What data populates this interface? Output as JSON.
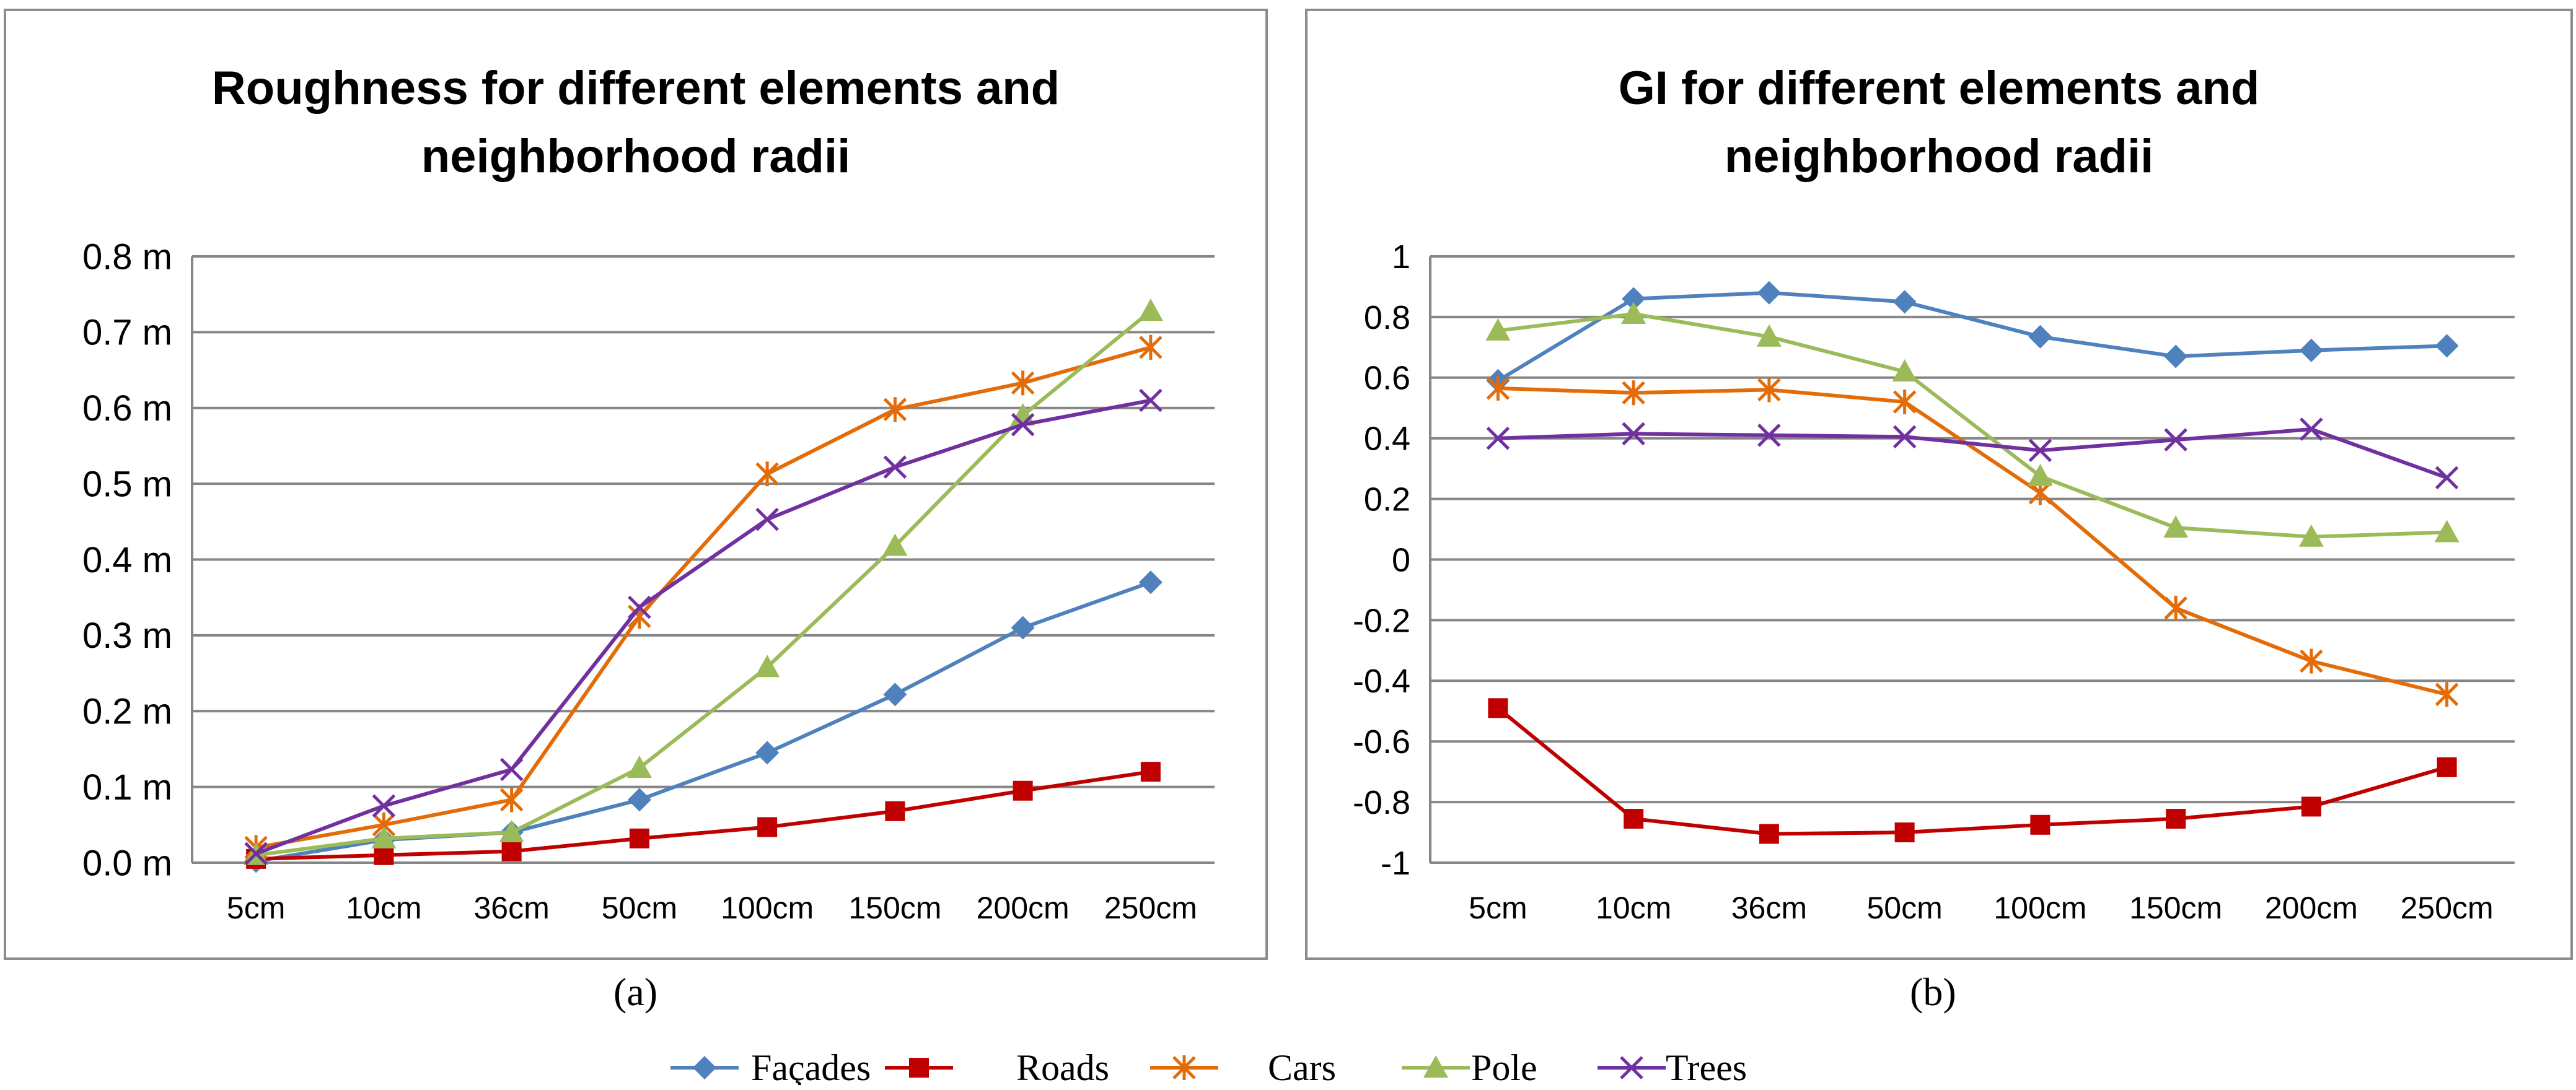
{
  "colors": {
    "facades": "#4f81bd",
    "roads": "#c00000",
    "cars": "#e36c09",
    "pole": "#9bbb59",
    "trees": "#7030a0",
    "grid": "#868686",
    "frame": "#8c8c8c"
  },
  "captions": {
    "a": "(a)",
    "b": "(b)"
  },
  "legend": [
    {
      "name": "Façades",
      "key": "facades",
      "marker": "diamond"
    },
    {
      "name": "Roads",
      "key": "roads",
      "marker": "square"
    },
    {
      "name": "Cars",
      "key": "cars",
      "marker": "asterisk"
    },
    {
      "name": "Pole",
      "key": "pole",
      "marker": "triangle"
    },
    {
      "name": "Trees",
      "key": "trees",
      "marker": "x"
    }
  ],
  "chart_data": [
    {
      "id": "a",
      "type": "line",
      "title": "Roughness for different elements and neighborhood radii",
      "title_lines": [
        "Roughness for different elements and",
        "neighborhood radii"
      ],
      "categories": [
        "5cm",
        "10cm",
        "36cm",
        "50cm",
        "100cm",
        "150cm",
        "200cm",
        "250cm"
      ],
      "ylim": [
        0,
        0.8
      ],
      "yticks": [
        0,
        0.1,
        0.2,
        0.3,
        0.4,
        0.5,
        0.6,
        0.7,
        0.8
      ],
      "ytick_labels": [
        "0.0 m",
        "0.1 m",
        "0.2 m",
        "0.3 m",
        "0.4 m",
        "0.5 m",
        "0.6 m",
        "0.7 m",
        "0.8 m"
      ],
      "grid": true,
      "series": [
        {
          "name": "Façades",
          "key": "facades",
          "marker": "diamond",
          "values": [
            0.002,
            0.03,
            0.04,
            0.083,
            0.145,
            0.222,
            0.31,
            0.37
          ]
        },
        {
          "name": "Roads",
          "key": "roads",
          "marker": "square",
          "values": [
            0.005,
            0.01,
            0.015,
            0.032,
            0.047,
            0.068,
            0.095,
            0.12
          ]
        },
        {
          "name": "Cars",
          "key": "cars",
          "marker": "asterisk",
          "values": [
            0.02,
            0.05,
            0.083,
            0.325,
            0.513,
            0.598,
            0.633,
            0.68
          ]
        },
        {
          "name": "Pole",
          "key": "pole",
          "marker": "triangle",
          "values": [
            0.01,
            0.032,
            0.04,
            0.125,
            0.258,
            0.418,
            0.59,
            0.728
          ]
        },
        {
          "name": "Trees",
          "key": "trees",
          "marker": "x",
          "values": [
            0.012,
            0.075,
            0.123,
            0.337,
            0.453,
            0.522,
            0.578,
            0.61
          ]
        }
      ]
    },
    {
      "id": "b",
      "type": "line",
      "title": "GI for different elements and neighborhood radii",
      "title_lines": [
        "GI for different elements and",
        "neighborhood radii"
      ],
      "categories": [
        "5cm",
        "10cm",
        "36cm",
        "50cm",
        "100cm",
        "150cm",
        "200cm",
        "250cm"
      ],
      "ylim": [
        -1,
        1
      ],
      "yticks": [
        -1,
        -0.8,
        -0.6,
        -0.4,
        -0.2,
        0,
        0.2,
        0.4,
        0.6,
        0.8,
        1
      ],
      "ytick_labels": [
        "-1",
        "-0.8",
        "-0.6",
        "-0.4",
        "-0.2",
        "0",
        "0.2",
        "0.4",
        "0.6",
        "0.8",
        "1"
      ],
      "grid": true,
      "series": [
        {
          "name": "Façades",
          "key": "facades",
          "marker": "diamond",
          "values": [
            0.59,
            0.86,
            0.88,
            0.85,
            0.735,
            0.67,
            0.69,
            0.705
          ]
        },
        {
          "name": "Roads",
          "key": "roads",
          "marker": "square",
          "values": [
            -0.49,
            -0.855,
            -0.905,
            -0.9,
            -0.875,
            -0.855,
            -0.815,
            -0.685
          ]
        },
        {
          "name": "Cars",
          "key": "cars",
          "marker": "asterisk",
          "values": [
            0.565,
            0.55,
            0.56,
            0.52,
            0.22,
            -0.16,
            -0.335,
            -0.445
          ]
        },
        {
          "name": "Pole",
          "key": "pole",
          "marker": "triangle",
          "values": [
            0.755,
            0.81,
            0.735,
            0.62,
            0.275,
            0.105,
            0.075,
            0.09
          ]
        },
        {
          "name": "Trees",
          "key": "trees",
          "marker": "x",
          "values": [
            0.4,
            0.415,
            0.41,
            0.405,
            0.36,
            0.395,
            0.43,
            0.27
          ]
        }
      ]
    }
  ]
}
